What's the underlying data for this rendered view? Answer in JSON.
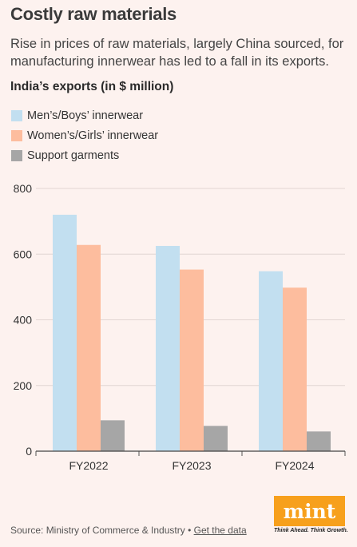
{
  "header": {
    "title": "Costly raw materials",
    "subtitle": "Rise in prices of raw materials, largely China sourced, for manufacturing innerwear has led to a fall in its exports.",
    "chart_heading": "India’s exports (in $ million)"
  },
  "colors": {
    "background": "#fdf2ef",
    "mens": "#c2dff0",
    "womens": "#fdbd9e",
    "support": "#a6a6a6",
    "logo": "#f7a01c"
  },
  "chart_data": {
    "type": "bar",
    "categories": [
      "FY2022",
      "FY2023",
      "FY2024"
    ],
    "series": [
      {
        "name": "Men’s/Boys’ innerwear",
        "values": [
          720,
          625,
          548
        ]
      },
      {
        "name": "Women’s/Girls’ innerwear",
        "values": [
          628,
          553,
          498
        ]
      },
      {
        "name": "Support garments",
        "values": [
          94,
          77,
          60
        ]
      }
    ],
    "yticks": [
      0,
      200,
      400,
      600,
      800
    ],
    "ylim": [
      0,
      800
    ],
    "grid": true,
    "legend_position": "top-left"
  },
  "footer": {
    "source": "Source: Ministry of Commerce & Industry •",
    "link": "Get the data",
    "logo_text": "mint",
    "logo_tagline": "Think Ahead. Think Growth."
  }
}
